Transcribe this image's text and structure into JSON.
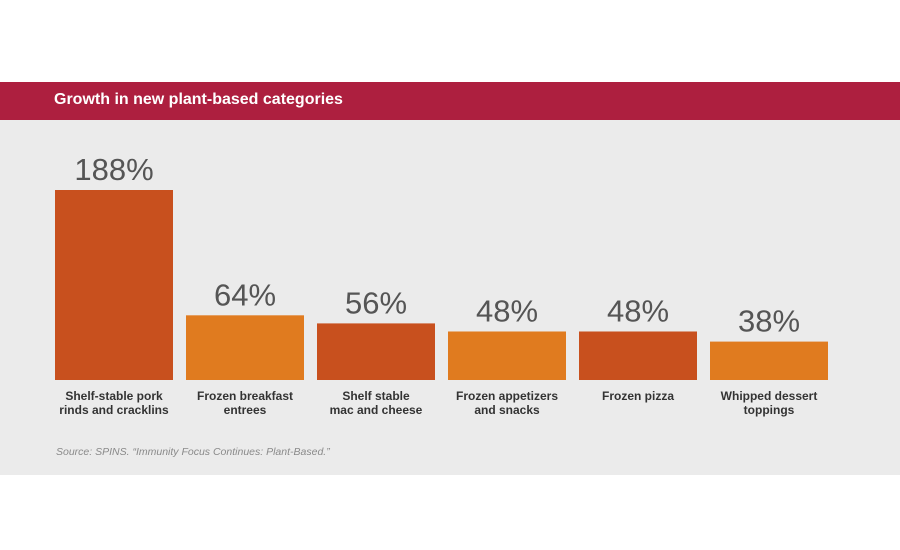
{
  "header": {
    "title": "Growth in new plant-based categories"
  },
  "chart_data": {
    "type": "bar",
    "title": "Growth in new plant-based categories",
    "categories": [
      [
        "Shelf-stable pork",
        "rinds and cracklins"
      ],
      [
        "Frozen breakfast",
        "entrees"
      ],
      [
        "Shelf stable",
        "mac and cheese"
      ],
      [
        "Frozen appetizers",
        "and snacks"
      ],
      [
        "Frozen pizza"
      ],
      [
        "Whipped dessert",
        "toppings"
      ]
    ],
    "values": [
      188,
      64,
      56,
      48,
      48,
      38
    ],
    "value_labels": [
      "188%",
      "64%",
      "56%",
      "48%",
      "48%",
      "38%"
    ],
    "bar_colors": [
      "#c8501e",
      "#e07b1f",
      "#c8501e",
      "#e07b1f",
      "#c8501e",
      "#e07b1f"
    ],
    "ylim": [
      0,
      188
    ],
    "xlabel": "",
    "ylabel": "",
    "grid": false
  },
  "footer": {
    "source": "Source: SPINS. “Immunity Focus Continues: Plant-Based.”"
  }
}
